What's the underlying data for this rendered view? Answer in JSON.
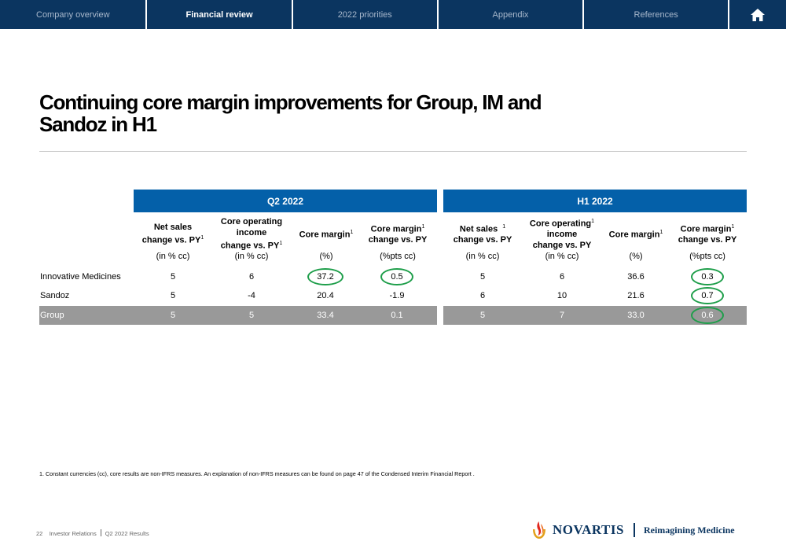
{
  "nav": {
    "tabs": [
      {
        "label": "Company overview",
        "active": false
      },
      {
        "label": "Financial review",
        "active": true
      },
      {
        "label": "2022 priorities",
        "active": false
      },
      {
        "label": "Appendix",
        "active": false
      },
      {
        "label": "References",
        "active": false
      }
    ],
    "home_icon": "home-icon"
  },
  "title": {
    "line1": "Continuing core margin improvements for Group, IM and",
    "line2": "Sandoz in H1"
  },
  "table": {
    "q2_label": "Q2 2022",
    "h1_label": "H1 2022",
    "headers": {
      "q2": [
        {
          "l1": "Net sales",
          "l2": "change vs. PY",
          "sup": "1"
        },
        {
          "l1": "Core operating",
          "l2": "income",
          "l3": "change vs. PY",
          "sup": "1"
        },
        {
          "l1": "Core margin",
          "sup": "1"
        },
        {
          "l1": "Core margin",
          "l2": "change vs. PY",
          "sup": "1"
        }
      ],
      "h1": [
        {
          "l1": "Net sales",
          "l2": "change vs. PY",
          "sup": "1"
        },
        {
          "l1": "Core operating",
          "l2": "income",
          "l3": "change vs. PY",
          "sup": "1"
        },
        {
          "l1": "Core margin",
          "sup": "1"
        },
        {
          "l1": "Core margin",
          "l2": "change vs. PY",
          "sup": "1"
        }
      ]
    },
    "units": [
      "(in % cc)",
      "(in % cc)",
      "(%)",
      "(%pts cc)",
      "(in % cc)",
      "(in % cc)",
      "(%)",
      "(%pts cc)"
    ],
    "rows": [
      {
        "label": "Innovative Medicines",
        "values": [
          "5",
          "6",
          "37.2",
          "0.5",
          "5",
          "6",
          "36.6",
          "0.3"
        ]
      },
      {
        "label": "Sandoz",
        "values": [
          "5",
          "-4",
          "20.4",
          "-1.9",
          "6",
          "10",
          "21.6",
          "0.7"
        ]
      },
      {
        "label": "Group",
        "values": [
          "5",
          "5",
          "33.4",
          "0.1",
          "5",
          "7",
          "33.0",
          "0.6"
        ]
      }
    ],
    "highlight_color": "#1e9e4a",
    "band_color": "#0460a9"
  },
  "footnote": "1. Constant currencies (cc), core results are non-IFRS measures. An explanation of non-IFRS measures can be found on page 47 of the Condensed Interim Financial Report .",
  "footer": {
    "page": "22",
    "section": "Investor Relations",
    "doc": "Q2 2022 Results",
    "brand": "NOVARTIS",
    "tagline": "Reimagining Medicine"
  }
}
